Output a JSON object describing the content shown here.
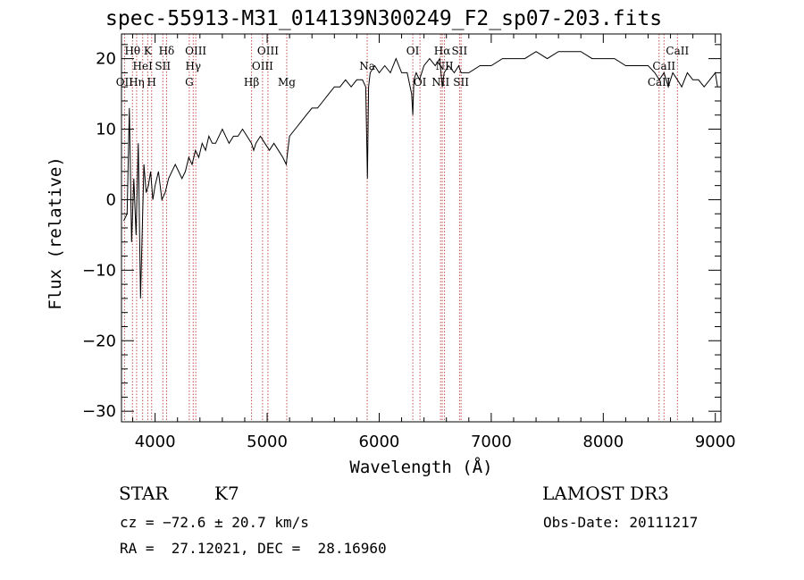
{
  "chart_data": {
    "type": "line",
    "title": "spec-55913-M31_014139N300249_F2_sp07-203.fits",
    "xlabel": "Wavelength (Å)",
    "ylabel": "Flux (relative)",
    "xlim": [
      3700,
      9050
    ],
    "ylim": [
      -31.5,
      23.5
    ],
    "x_ticks": [
      4000,
      5000,
      6000,
      7000,
      8000,
      9000
    ],
    "x_tick_labels": [
      "4000",
      "5000",
      "6000",
      "7000",
      "8000",
      "9000"
    ],
    "y_ticks": [
      -30,
      -20,
      -10,
      0,
      10,
      20
    ],
    "y_tick_labels": [
      "−30",
      "−20",
      "−10",
      "0",
      "10",
      "20"
    ],
    "line_color": "#000000",
    "marker_color": "#c0504d",
    "series": [
      {
        "name": "flux",
        "x": [
          3720,
          3750,
          3770,
          3790,
          3810,
          3830,
          3850,
          3870,
          3900,
          3920,
          3940,
          3960,
          3980,
          4000,
          4030,
          4060,
          4090,
          4120,
          4150,
          4180,
          4210,
          4240,
          4270,
          4300,
          4330,
          4360,
          4390,
          4420,
          4450,
          4480,
          4510,
          4540,
          4570,
          4600,
          4630,
          4660,
          4700,
          4740,
          4780,
          4820,
          4860,
          4880,
          4900,
          4940,
          4980,
          5020,
          5060,
          5100,
          5140,
          5170,
          5185,
          5200,
          5250,
          5300,
          5350,
          5400,
          5450,
          5500,
          5550,
          5600,
          5650,
          5700,
          5750,
          5800,
          5850,
          5880,
          5895,
          5905,
          5920,
          5960,
          6000,
          6050,
          6100,
          6150,
          6200,
          6250,
          6290,
          6300,
          6310,
          6330,
          6360,
          6400,
          6450,
          6500,
          6540,
          6563,
          6580,
          6620,
          6670,
          6710,
          6730,
          6760,
          6800,
          6900,
          7000,
          7100,
          7200,
          7300,
          7400,
          7500,
          7600,
          7700,
          7800,
          7900,
          8000,
          8100,
          8200,
          8300,
          8400,
          8460,
          8500,
          8542,
          8580,
          8620,
          8662,
          8700,
          8750,
          8800,
          8850,
          8900,
          8950,
          9000,
          9020
        ],
        "values": [
          -3,
          -2,
          13,
          -6,
          3,
          -5,
          8,
          -14,
          5,
          1,
          2,
          4,
          0,
          2,
          4,
          0,
          1,
          3,
          4,
          5,
          4,
          3,
          4,
          6,
          5,
          7,
          6,
          8,
          7,
          9,
          8,
          8,
          9,
          10,
          9,
          8,
          9,
          9,
          10,
          9,
          8,
          7,
          8,
          9,
          8,
          7,
          8,
          7,
          6,
          5,
          7,
          9,
          10,
          11,
          12,
          13,
          13,
          14,
          15,
          16,
          16,
          17,
          16,
          17,
          17,
          16,
          3,
          16,
          18,
          19,
          18,
          19,
          18,
          20,
          18,
          18,
          15,
          12,
          17,
          18,
          17,
          19,
          20,
          19,
          20,
          16,
          18,
          19,
          18,
          19,
          18,
          18,
          18,
          19,
          19,
          20,
          20,
          20,
          21,
          20,
          21,
          21,
          21,
          20,
          20,
          20,
          19,
          19,
          19,
          18,
          17,
          18,
          16,
          18,
          17,
          16,
          18,
          17,
          17,
          16,
          17,
          18,
          16
        ]
      }
    ],
    "lines": [
      {
        "name": "Hθ",
        "wavelength": 3798,
        "row": 1
      },
      {
        "name": "OII",
        "wavelength": 3727,
        "row": 3
      },
      {
        "name": "Hη",
        "wavelength": 3835,
        "row": 3
      },
      {
        "name": "HeI",
        "wavelength": 3889,
        "row": 2
      },
      {
        "name": "K",
        "wavelength": 3934,
        "row": 1
      },
      {
        "name": "H",
        "wavelength": 3969,
        "row": 3
      },
      {
        "name": "SII",
        "wavelength": 4069,
        "row": 2
      },
      {
        "name": "Hδ",
        "wavelength": 4102,
        "row": 1
      },
      {
        "name": "G",
        "wavelength": 4305,
        "row": 3
      },
      {
        "name": "Hγ",
        "wavelength": 4340,
        "row": 2
      },
      {
        "name": "OIII",
        "wavelength": 4363,
        "row": 1
      },
      {
        "name": "Hβ",
        "wavelength": 4861,
        "row": 3
      },
      {
        "name": "OIII",
        "wavelength": 4959,
        "row": 2
      },
      {
        "name": "OIII",
        "wavelength": 5007,
        "row": 1
      },
      {
        "name": "Mg",
        "wavelength": 5175,
        "row": 3
      },
      {
        "name": "Na",
        "wavelength": 5893,
        "row": 2
      },
      {
        "name": "OI",
        "wavelength": 6300,
        "row": 1
      },
      {
        "name": "OI",
        "wavelength": 6364,
        "row": 3
      },
      {
        "name": "NII",
        "wavelength": 6548,
        "row": 3
      },
      {
        "name": "Hα",
        "wavelength": 6563,
        "row": 1
      },
      {
        "name": "NII",
        "wavelength": 6583,
        "row": 2
      },
      {
        "name": "SII",
        "wavelength": 6717,
        "row": 1
      },
      {
        "name": "SII",
        "wavelength": 6731,
        "row": 3
      },
      {
        "name": "CaII",
        "wavelength": 8498,
        "row": 3
      },
      {
        "name": "CaII",
        "wavelength": 8542,
        "row": 2
      },
      {
        "name": "CaII",
        "wavelength": 8662,
        "row": 1
      }
    ]
  },
  "info": {
    "object_class": "STAR",
    "subclass": "K7",
    "survey": "LAMOST DR3",
    "redshift_text": "cz = −72.6 ± 20.7 km/s",
    "obs_date_text": "Obs-Date: 20111217",
    "coords_text": "RA =  27.12021, DEC =  28.16960"
  }
}
